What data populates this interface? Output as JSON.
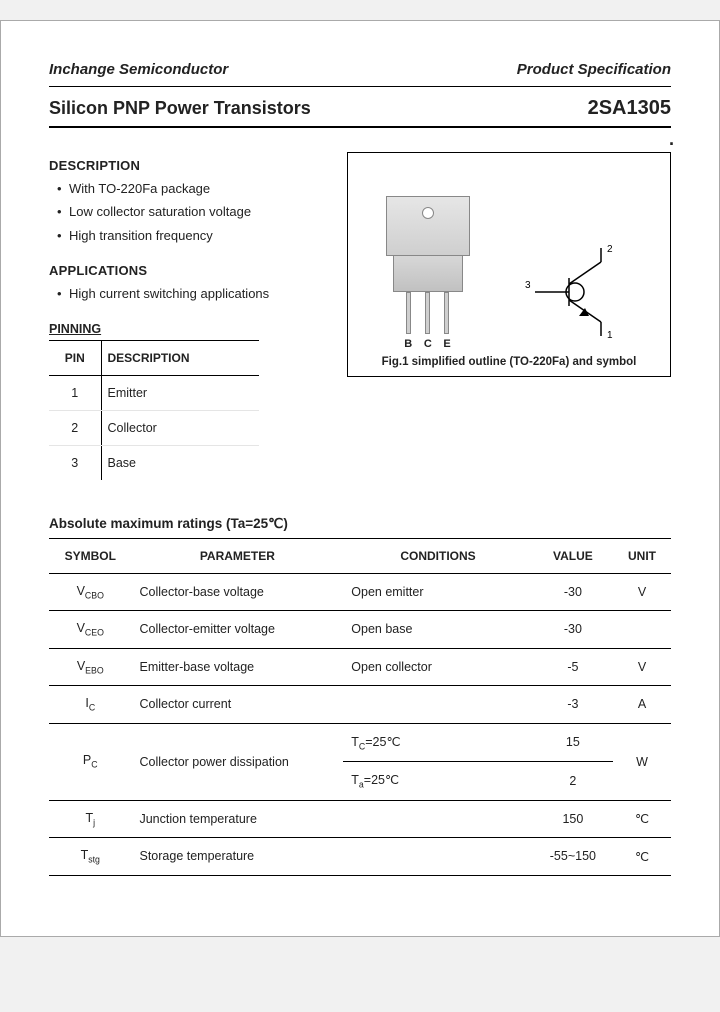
{
  "header": {
    "left": "Inchange Semiconductor",
    "right": "Product Specification"
  },
  "title": {
    "product_family": "Silicon PNP Power Transistors",
    "part_number": "2SA1305"
  },
  "description": {
    "heading": "DESCRIPTION",
    "bullets": [
      "With TO-220Fa package",
      "Low collector saturation voltage",
      "High transition frequency"
    ]
  },
  "applications": {
    "heading": "APPLICATIONS",
    "bullets": [
      "High current switching applications"
    ]
  },
  "pinning": {
    "caption": "PINNING",
    "headers": {
      "pin": "PIN",
      "desc": "DESCRIPTION"
    },
    "rows": [
      {
        "pin": "1",
        "desc": "Emitter"
      },
      {
        "pin": "2",
        "desc": "Collector"
      },
      {
        "pin": "3",
        "desc": "Base"
      }
    ]
  },
  "figure": {
    "pin_labels": [
      "B",
      "C",
      "E"
    ],
    "symbol_pins": [
      "1",
      "2",
      "3"
    ],
    "caption": "Fig.1 simplified outline (TO-220Fa) and symbol",
    "colors": {
      "box_border": "#000000",
      "package_fill_top": "#e6e6e6",
      "package_fill_bottom": "#cfcfcf",
      "package_border": "#888888",
      "symbol_stroke": "#000000"
    }
  },
  "ratings": {
    "heading": "Absolute maximum ratings (Ta=25℃)",
    "headers": {
      "symbol": "SYMBOL",
      "parameter": "PARAMETER",
      "conditions": "CONDITIONS",
      "value": "VALUE",
      "unit": "UNIT"
    },
    "rows": [
      {
        "symbol": "V",
        "sub": "CBO",
        "parameter": "Collector-base voltage",
        "conditions": "Open emitter",
        "value": "-30",
        "unit": "V"
      },
      {
        "symbol": "V",
        "sub": "CEO",
        "parameter": "Collector-emitter voltage",
        "conditions": "Open base",
        "value": "-30",
        "unit": ""
      },
      {
        "symbol": "V",
        "sub": "EBO",
        "parameter": "Emitter-base voltage",
        "conditions": "Open collector",
        "value": "-5",
        "unit": "V"
      },
      {
        "symbol": "I",
        "sub": "C",
        "parameter": "Collector current",
        "conditions": "",
        "value": "-3",
        "unit": "A"
      },
      {
        "symbol": "P",
        "sub": "C",
        "parameter": "Collector power dissipation",
        "split": [
          {
            "cond_sym": "T",
            "cond_sub": "C",
            "cond_rest": "=25℃",
            "value": "15"
          },
          {
            "cond_sym": "T",
            "cond_sub": "a",
            "cond_rest": "=25℃",
            "value": "2"
          }
        ],
        "unit": "W"
      },
      {
        "symbol": "T",
        "sub": "j",
        "parameter": "Junction temperature",
        "conditions": "",
        "value": "150",
        "unit": "℃"
      },
      {
        "symbol": "T",
        "sub": "stg",
        "parameter": "Storage temperature",
        "conditions": "",
        "value": "-55~150",
        "unit": "℃"
      }
    ]
  }
}
